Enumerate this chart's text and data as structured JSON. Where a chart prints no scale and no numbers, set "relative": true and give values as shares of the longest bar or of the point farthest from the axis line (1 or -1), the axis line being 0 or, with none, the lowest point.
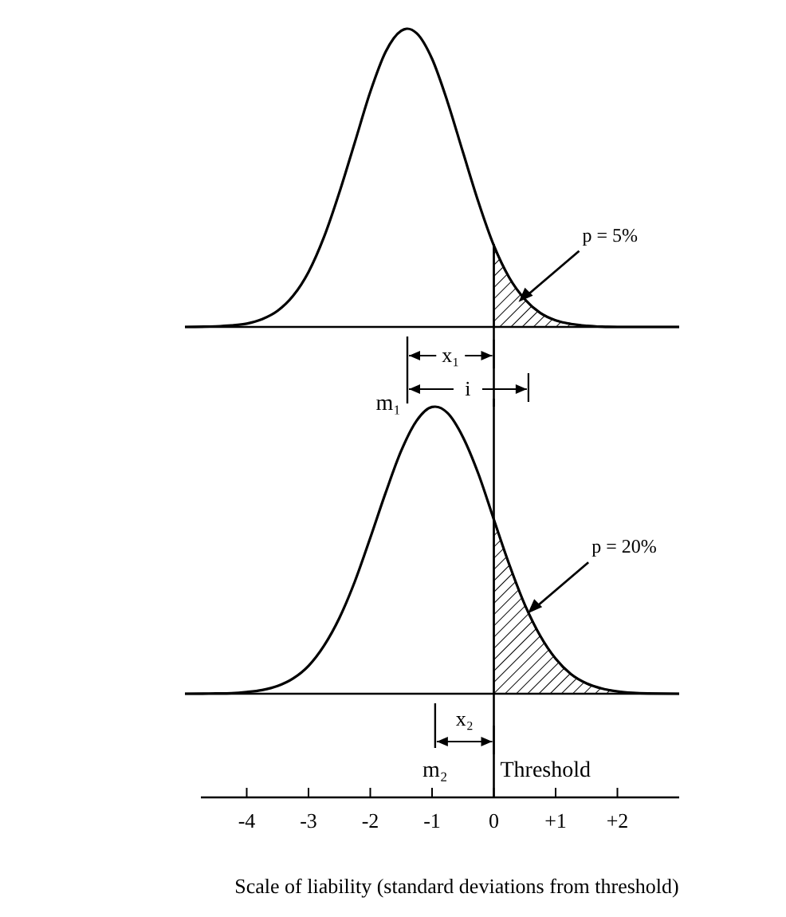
{
  "chart_data": [
    {
      "type": "line",
      "relative": true,
      "xlim": [
        -5,
        3
      ],
      "tick_labels": false,
      "series": [
        {
          "type": "line",
          "color": "#000000",
          "x": [
            -5,
            -4.5,
            -4.25,
            -4,
            -3.75,
            -3.5,
            -3.25,
            -3,
            -2.75,
            -2.5,
            -2.25,
            -2,
            -1.75,
            -1.5,
            -1.4,
            -1.25,
            -1,
            -0.75,
            -0.5,
            -0.25,
            0,
            0.25,
            0.5,
            0.75,
            1,
            1.25,
            1.5,
            1.75,
            2,
            3
          ],
          "values": [
            0,
            0.002,
            0.005,
            0.011,
            0.026,
            0.054,
            0.104,
            0.184,
            0.301,
            0.451,
            0.619,
            0.788,
            0.923,
            0.993,
            1,
            0.985,
            0.899,
            0.755,
            0.586,
            0.419,
            0.273,
            0.165,
            0.093,
            0.047,
            0.022,
            0.01,
            0.004,
            0.001,
            0,
            0
          ]
        },
        {
          "type": "area",
          "color": "#000000",
          "x": [
            0,
            0.25,
            0.5,
            0.75,
            1,
            1.25,
            1.5,
            1.75,
            2
          ],
          "values": [
            0.273,
            0.165,
            0.093,
            0.047,
            0.022,
            0.01,
            0.004,
            0.001,
            0
          ]
        }
      ],
      "ref_lines": [
        {
          "axis": "x",
          "value": 0
        }
      ],
      "annotations": [
        "p = 5%",
        "m₁",
        "x₁",
        "i"
      ]
    },
    {
      "type": "line",
      "relative": true,
      "xlim": [
        -5,
        3
      ],
      "xticks": [
        -4,
        -3,
        -2,
        -1,
        0,
        {
          "value": 1,
          "label": "+1"
        },
        {
          "value": 2,
          "label": "+2"
        }
      ],
      "xlabel": "Scale of liability (standard deviations from threshold)",
      "series": [
        {
          "type": "line",
          "color": "#000000",
          "x": [
            -5,
            -4.5,
            -4.25,
            -4,
            -3.75,
            -3.5,
            -3.25,
            -3,
            -2.75,
            -2.5,
            -2.25,
            -2,
            -1.75,
            -1.5,
            -1.25,
            -1,
            -0.95,
            -0.75,
            -0.5,
            -0.25,
            0,
            0.25,
            0.5,
            0.75,
            1,
            1.25,
            1.5,
            1.75,
            2,
            2.25,
            2.5,
            3
          ],
          "values": [
            0,
            0.001,
            0.002,
            0.006,
            0.013,
            0.027,
            0.053,
            0.097,
            0.167,
            0.264,
            0.391,
            0.543,
            0.701,
            0.846,
            0.951,
            0.999,
            1,
            0.978,
            0.894,
            0.766,
            0.607,
            0.45,
            0.311,
            0.202,
            0.122,
            0.068,
            0.036,
            0.018,
            0.008,
            0.003,
            0.001,
            0
          ]
        },
        {
          "type": "area",
          "color": "#000000",
          "x": [
            0,
            0.25,
            0.5,
            0.75,
            1,
            1.25,
            1.5,
            1.75,
            2,
            2.25,
            2.5
          ],
          "values": [
            0.607,
            0.45,
            0.311,
            0.202,
            0.122,
            0.068,
            0.036,
            0.018,
            0.008,
            0.003,
            0.001
          ]
        }
      ],
      "ref_lines": [
        {
          "axis": "x",
          "value": 0,
          "label": "Threshold"
        }
      ],
      "annotations": [
        "p = 20%",
        "m₂",
        "x₂"
      ]
    }
  ]
}
